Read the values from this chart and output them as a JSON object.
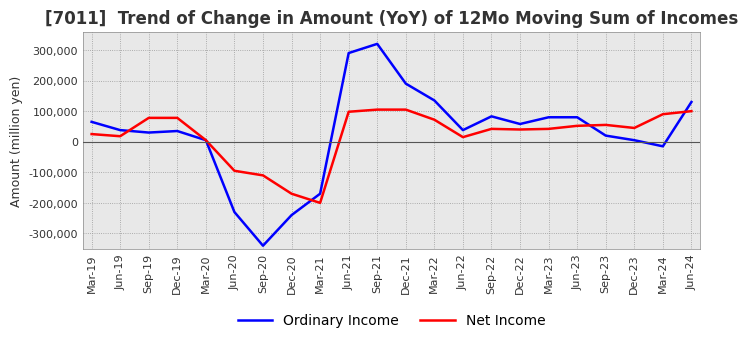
{
  "title": "[7011]  Trend of Change in Amount (YoY) of 12Mo Moving Sum of Incomes",
  "ylabel": "Amount (million yen)",
  "ylim": [
    -350000,
    360000
  ],
  "yticks": [
    -300000,
    -200000,
    -100000,
    0,
    100000,
    200000,
    300000
  ],
  "plot_bg_color": "#e8e8e8",
  "background_color": "#ffffff",
  "grid_color": "#999999",
  "dates": [
    "Mar-19",
    "Jun-19",
    "Sep-19",
    "Dec-19",
    "Mar-20",
    "Jun-20",
    "Sep-20",
    "Dec-20",
    "Mar-21",
    "Jun-21",
    "Sep-21",
    "Dec-21",
    "Mar-22",
    "Jun-22",
    "Sep-22",
    "Dec-22",
    "Mar-23",
    "Jun-23",
    "Sep-23",
    "Dec-23",
    "Mar-24",
    "Jun-24"
  ],
  "ordinary_income": [
    65000,
    38000,
    30000,
    35000,
    5000,
    -230000,
    -340000,
    -240000,
    -170000,
    290000,
    320000,
    190000,
    135000,
    38000,
    83000,
    58000,
    80000,
    80000,
    20000,
    5000,
    -15000,
    130000
  ],
  "net_income": [
    25000,
    18000,
    78000,
    78000,
    5000,
    -95000,
    -110000,
    -170000,
    -200000,
    98000,
    105000,
    105000,
    72000,
    15000,
    42000,
    40000,
    42000,
    52000,
    55000,
    45000,
    90000,
    100000
  ],
  "ordinary_color": "#0000ff",
  "net_color": "#ff0000",
  "line_width": 1.8,
  "title_fontsize": 12,
  "tick_fontsize": 8,
  "legend_fontsize": 10
}
